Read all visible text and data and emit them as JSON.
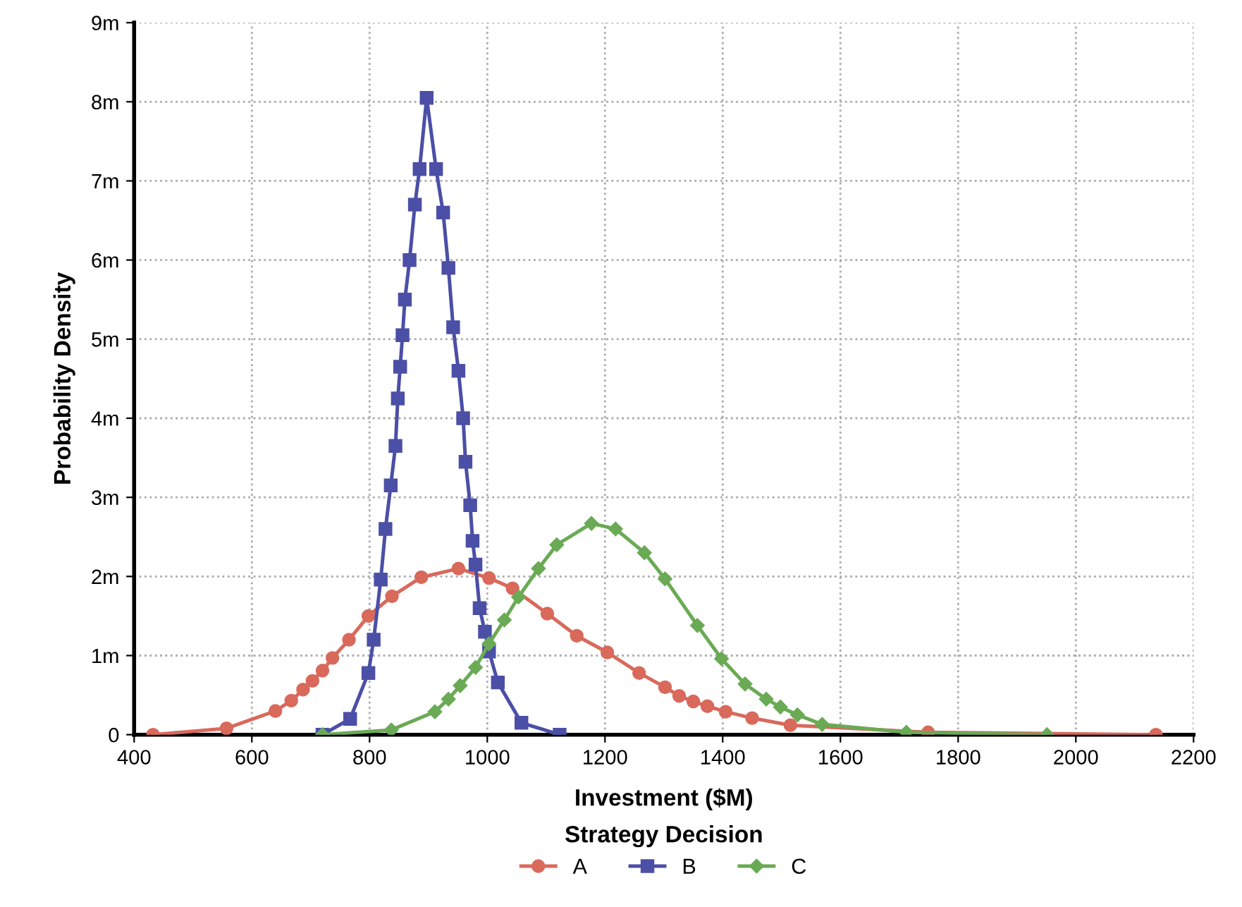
{
  "chart_data": {
    "type": "line",
    "xlabel": "Investment ($M)",
    "ylabel": "Probability Density",
    "legend_title": "Strategy Decision",
    "legend": "bottom",
    "grid": true,
    "xlim": [
      400,
      2200
    ],
    "xticks": [
      400,
      600,
      800,
      1000,
      1200,
      1400,
      1600,
      1800,
      2000,
      2200
    ],
    "ylim": [
      0,
      9
    ],
    "yticks": [
      0,
      {
        "value": 1,
        "label": "1m"
      },
      {
        "value": 2,
        "label": "2m"
      },
      {
        "value": 3,
        "label": "3m"
      },
      {
        "value": 4,
        "label": "4m"
      },
      {
        "value": 5,
        "label": "5m"
      },
      {
        "value": 6,
        "label": "6m"
      },
      {
        "value": 7,
        "label": "7m"
      },
      {
        "value": 8,
        "label": "8m"
      },
      {
        "value": 9,
        "label": "9m"
      }
    ],
    "series": [
      {
        "name": "A",
        "color": "#d9695b",
        "marker": "circle",
        "x": [
          432,
          557,
          640,
          667,
          687,
          703,
          720,
          737,
          765,
          798,
          838,
          888,
          951,
          1003,
          1043,
          1102,
          1152,
          1204,
          1258,
          1302,
          1326,
          1350,
          1374,
          1405,
          1450,
          1515,
          1749,
          2136
        ],
        "values": [
          0,
          0.08,
          0.3,
          0.43,
          0.57,
          0.68,
          0.81,
          0.97,
          1.2,
          1.5,
          1.75,
          1.99,
          2.1,
          1.98,
          1.85,
          1.53,
          1.25,
          1.04,
          0.78,
          0.6,
          0.49,
          0.42,
          0.36,
          0.29,
          0.21,
          0.12,
          0.03,
          0
        ]
      },
      {
        "name": "B",
        "color": "#4b4fa6",
        "marker": "square",
        "x": [
          720,
          767,
          798,
          807,
          819,
          827,
          836,
          844,
          848,
          852,
          856,
          860,
          868,
          877,
          885,
          897,
          913,
          925,
          934,
          942,
          951,
          959,
          963,
          971,
          975,
          980,
          987,
          996,
          1003,
          1018,
          1058,
          1123
        ],
        "values": [
          0,
          0.2,
          0.78,
          1.2,
          1.96,
          2.6,
          3.15,
          3.65,
          4.25,
          4.65,
          5.05,
          5.5,
          6.0,
          6.7,
          7.15,
          8.05,
          7.15,
          6.6,
          5.9,
          5.15,
          4.6,
          4.0,
          3.45,
          2.9,
          2.45,
          2.15,
          1.6,
          1.3,
          1.05,
          0.66,
          0.15,
          0
        ]
      },
      {
        "name": "C",
        "color": "#6aaa55",
        "marker": "diamond",
        "x": [
          720,
          837,
          911,
          934,
          954,
          980,
          1003,
          1029,
          1053,
          1087,
          1118,
          1177,
          1218,
          1267,
          1302,
          1357,
          1398,
          1438,
          1474,
          1498,
          1527,
          1569,
          1712,
          1951
        ],
        "values": [
          0,
          0.06,
          0.29,
          0.45,
          0.62,
          0.85,
          1.15,
          1.45,
          1.74,
          2.1,
          2.4,
          2.67,
          2.6,
          2.3,
          1.97,
          1.38,
          0.96,
          0.64,
          0.45,
          0.35,
          0.25,
          0.13,
          0.03,
          0
        ]
      }
    ]
  }
}
